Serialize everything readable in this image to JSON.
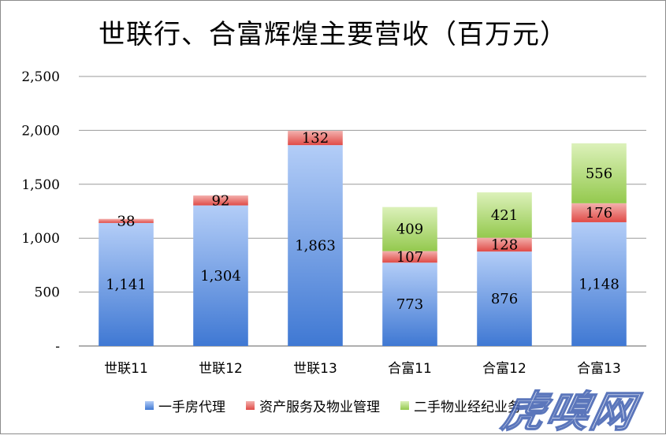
{
  "chart_data": {
    "type": "bar",
    "stacked": true,
    "title": "世联行、合富辉煌主要营收（百万元）",
    "categories": [
      "世联11",
      "世联12",
      "世联13",
      "合富11",
      "合富12",
      "合富13"
    ],
    "series": [
      {
        "name": "一手房代理",
        "color": "#7ea6ea",
        "values": [
          1141,
          1304,
          1863,
          773,
          876,
          1148
        ]
      },
      {
        "name": "资产服务及物业管理",
        "color": "#e9605c",
        "values": [
          38,
          92,
          132,
          107,
          128,
          176
        ]
      },
      {
        "name": "二手物业经纪业务",
        "color": "#a9d86a",
        "values": [
          0,
          0,
          0,
          409,
          421,
          556
        ]
      }
    ],
    "data_labels": [
      [
        "1,141",
        "1,304",
        "1,863",
        "773",
        "876",
        "1,148"
      ],
      [
        "38",
        "92",
        "132",
        "107",
        "128",
        "176"
      ],
      [
        "",
        "",
        "",
        "409",
        "421",
        "556"
      ]
    ],
    "ylim": [
      0,
      2500
    ],
    "yticks": [
      0,
      500,
      1000,
      1500,
      2000,
      2500
    ],
    "ytick_labels": [
      "-",
      "500",
      "1,000",
      "1,500",
      "2,000",
      "2,500"
    ],
    "grid": true,
    "legend_position": "bottom"
  },
  "watermark": {
    "text": "虎嗅网"
  }
}
